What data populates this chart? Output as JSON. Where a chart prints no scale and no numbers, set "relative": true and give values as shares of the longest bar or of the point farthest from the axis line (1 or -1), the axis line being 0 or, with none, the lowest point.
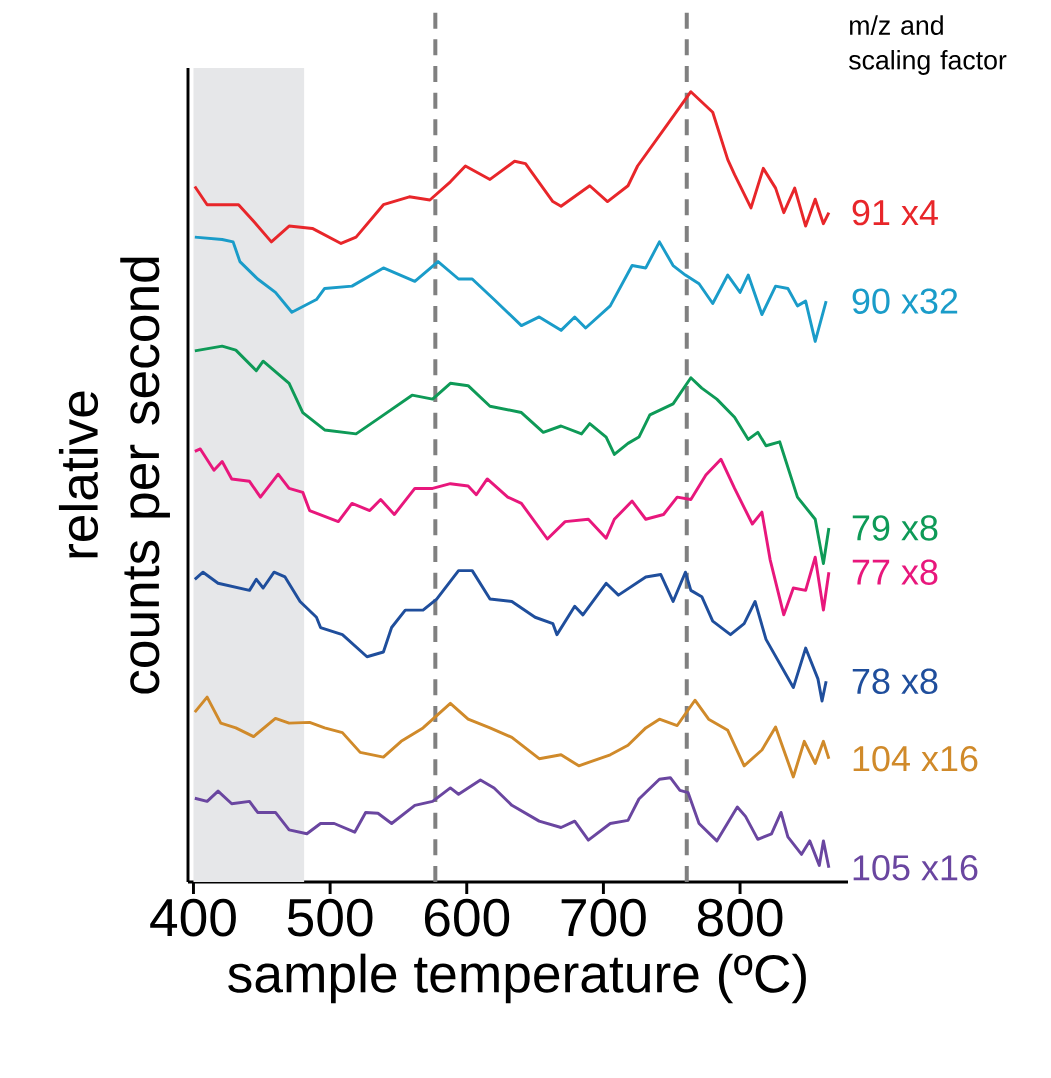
{
  "chart_data": {
    "type": "line",
    "relative": true,
    "xlabel": "sample temperature (ºC)",
    "ylabel": "relative counts per second",
    "xlim": [
      396,
      879
    ],
    "xticks": [
      400,
      500,
      600,
      700,
      800
    ],
    "annotations": [
      "m/z and scaling factor"
    ],
    "ref_lines": [
      {
        "axis": "x",
        "value": 577,
        "color": "#808080",
        "line_style": "dashed"
      },
      {
        "axis": "x",
        "value": 761,
        "color": "#808080",
        "line_style": "dashed"
      }
    ],
    "bands": [
      {
        "axis": "x",
        "from": 400,
        "to": 481,
        "color": "#e6e7e9"
      }
    ],
    "series": [
      {
        "name": "91 x4",
        "color": "#e8262a",
        "x": [
          401,
          410,
          433,
          444,
          457,
          470,
          487,
          508,
          519,
          539,
          558,
          573,
          588,
          599,
          617,
          635,
          643,
          663,
          669,
          690,
          703,
          718,
          725,
          747,
          764,
          780,
          791,
          796,
          808,
          817,
          826,
          832,
          840,
          848,
          855,
          861,
          865
        ],
        "values": [
          0.88,
          0.857,
          0.857,
          0.836,
          0.81,
          0.83,
          0.827,
          0.808,
          0.816,
          0.857,
          0.867,
          0.863,
          0.886,
          0.906,
          0.889,
          0.912,
          0.909,
          0.861,
          0.855,
          0.881,
          0.861,
          0.881,
          0.906,
          0.959,
          1.0,
          0.974,
          0.914,
          0.895,
          0.853,
          0.903,
          0.878,
          0.847,
          0.878,
          0.83,
          0.864,
          0.833,
          0.847
        ]
      },
      {
        "name": "90 x32",
        "color": "#1a9cc9",
        "x": [
          401,
          421,
          429,
          434,
          447,
          460,
          472,
          490,
          496,
          516,
          539,
          562,
          579,
          594,
          604,
          620,
          640,
          653,
          669,
          679,
          687,
          705,
          721,
          731,
          741,
          751,
          760,
          770,
          780,
          791,
          800,
          806,
          816,
          826,
          835,
          842,
          848,
          855,
          863
        ],
        "values": [
          0.816,
          0.813,
          0.81,
          0.785,
          0.763,
          0.746,
          0.721,
          0.737,
          0.751,
          0.754,
          0.777,
          0.76,
          0.785,
          0.763,
          0.763,
          0.737,
          0.704,
          0.715,
          0.698,
          0.715,
          0.701,
          0.729,
          0.78,
          0.777,
          0.81,
          0.78,
          0.768,
          0.757,
          0.732,
          0.768,
          0.746,
          0.768,
          0.718,
          0.754,
          0.751,
          0.729,
          0.735,
          0.684,
          0.735
        ]
      },
      {
        "name": "79 x8",
        "color": "#0e9a57",
        "x": [
          401,
          421,
          431,
          446,
          451,
          470,
          480,
          496,
          519,
          535,
          560,
          575,
          588,
          601,
          617,
          640,
          656,
          669,
          684,
          690,
          702,
          708,
          718,
          726,
          734,
          751,
          764,
          772,
          783,
          796,
          806,
          813,
          819,
          829,
          842,
          855,
          861,
          865
        ],
        "values": [
          0.672,
          0.678,
          0.673,
          0.647,
          0.659,
          0.631,
          0.594,
          0.572,
          0.567,
          0.586,
          0.616,
          0.611,
          0.631,
          0.628,
          0.602,
          0.594,
          0.569,
          0.577,
          0.567,
          0.58,
          0.563,
          0.541,
          0.555,
          0.563,
          0.591,
          0.605,
          0.638,
          0.625,
          0.611,
          0.588,
          0.56,
          0.569,
          0.552,
          0.557,
          0.487,
          0.459,
          0.403,
          0.448
        ]
      },
      {
        "name": "77 x8",
        "color": "#e8177c",
        "x": [
          401,
          405,
          415,
          421,
          428,
          441,
          449,
          462,
          470,
          480,
          485,
          506,
          516,
          529,
          537,
          547,
          562,
          575,
          588,
          601,
          607,
          615,
          630,
          640,
          659,
          672,
          689,
          702,
          708,
          721,
          731,
          744,
          754,
          764,
          775,
          786,
          796,
          809,
          816,
          822,
          832,
          839,
          848,
          855,
          861,
          865
        ],
        "values": [
          0.545,
          0.548,
          0.521,
          0.532,
          0.51,
          0.507,
          0.487,
          0.516,
          0.498,
          0.493,
          0.47,
          0.456,
          0.479,
          0.47,
          0.484,
          0.465,
          0.498,
          0.498,
          0.504,
          0.501,
          0.49,
          0.51,
          0.487,
          0.479,
          0.434,
          0.456,
          0.459,
          0.435,
          0.459,
          0.482,
          0.459,
          0.465,
          0.487,
          0.484,
          0.515,
          0.535,
          0.498,
          0.453,
          0.468,
          0.408,
          0.338,
          0.372,
          0.369,
          0.411,
          0.344,
          0.392
        ]
      },
      {
        "name": "78 x8",
        "color": "#1f4e9c",
        "x": [
          401,
          407,
          418,
          441,
          446,
          451,
          459,
          467,
          478,
          490,
          493,
          509,
          527,
          539,
          545,
          555,
          568,
          578,
          594,
          604,
          617,
          633,
          650,
          663,
          666,
          679,
          685,
          702,
          711,
          731,
          742,
          751,
          760,
          764,
          772,
          780,
          793,
          803,
          811,
          819,
          839,
          848,
          857,
          860,
          863
        ],
        "values": [
          0.383,
          0.392,
          0.378,
          0.369,
          0.383,
          0.372,
          0.392,
          0.386,
          0.355,
          0.335,
          0.322,
          0.313,
          0.285,
          0.291,
          0.322,
          0.344,
          0.344,
          0.358,
          0.394,
          0.394,
          0.358,
          0.355,
          0.335,
          0.327,
          0.313,
          0.349,
          0.338,
          0.378,
          0.363,
          0.386,
          0.389,
          0.355,
          0.392,
          0.369,
          0.361,
          0.33,
          0.313,
          0.327,
          0.355,
          0.307,
          0.246,
          0.296,
          0.257,
          0.229,
          0.254
        ]
      },
      {
        "name": "104 x16",
        "color": "#d08a2a",
        "x": [
          401,
          410,
          420,
          431,
          444,
          460,
          470,
          485,
          496,
          509,
          522,
          539,
          552,
          568,
          588,
          601,
          617,
          633,
          653,
          669,
          682,
          705,
          718,
          731,
          741,
          754,
          767,
          777,
          791,
          803,
          816,
          826,
          839,
          847,
          855,
          861,
          865
        ],
        "values": [
          0.215,
          0.234,
          0.201,
          0.195,
          0.184,
          0.207,
          0.201,
          0.202,
          0.195,
          0.189,
          0.164,
          0.158,
          0.178,
          0.195,
          0.226,
          0.206,
          0.195,
          0.183,
          0.156,
          0.161,
          0.147,
          0.161,
          0.173,
          0.195,
          0.206,
          0.198,
          0.23,
          0.206,
          0.192,
          0.147,
          0.167,
          0.196,
          0.133,
          0.178,
          0.15,
          0.178,
          0.156
        ]
      },
      {
        "name": "105 x16",
        "color": "#6a46a0",
        "x": [
          401,
          410,
          418,
          428,
          441,
          447,
          460,
          470,
          483,
          493,
          503,
          518,
          526,
          535,
          545,
          562,
          575,
          588,
          594,
          610,
          620,
          633,
          653,
          669,
          679,
          689,
          705,
          718,
          726,
          741,
          749,
          756,
          762,
          770,
          783,
          798,
          804,
          813,
          823,
          830,
          835,
          845,
          851,
          858,
          861,
          865
        ],
        "values": [
          0.106,
          0.102,
          0.115,
          0.099,
          0.102,
          0.088,
          0.088,
          0.066,
          0.061,
          0.074,
          0.074,
          0.063,
          0.088,
          0.087,
          0.074,
          0.097,
          0.102,
          0.119,
          0.111,
          0.129,
          0.119,
          0.097,
          0.077,
          0.069,
          0.077,
          0.053,
          0.074,
          0.078,
          0.105,
          0.13,
          0.132,
          0.116,
          0.113,
          0.074,
          0.052,
          0.095,
          0.083,
          0.054,
          0.061,
          0.088,
          0.057,
          0.035,
          0.052,
          0.021,
          0.052,
          0.018
        ]
      }
    ]
  }
}
